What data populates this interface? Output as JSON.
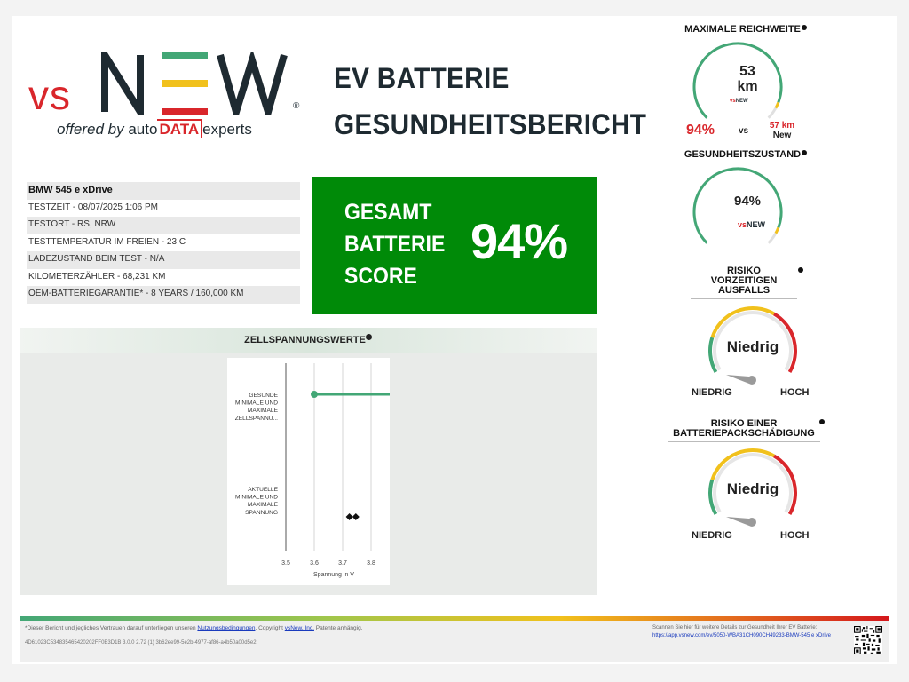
{
  "logo": {
    "vs": "vs",
    "new": "NEW",
    "registered": "®",
    "offered_by": "offered by",
    "auto": "auto",
    "data": "DATA",
    "experts": "experts"
  },
  "title": {
    "line1": "EV BATTERIE",
    "line2": "GESUNDHEITSBERICHT"
  },
  "vehicle": {
    "model": "BMW 545 e xDrive",
    "rows": [
      "TESTZEIT - 08/07/2025 1:06 PM",
      "TESTORT - RS, NRW",
      "TESTTEMPERATUR IM FREIEN - 23 C",
      "LADEZUSTAND BEIM TEST - N/A",
      "KILOMETERZÄHLER - 68,231 KM",
      "OEM-BATTERIEGARANTIE* - 8 YEARS / 160,000 KM"
    ]
  },
  "score": {
    "line1": "GESAMT",
    "line2": "BATTERIE",
    "line3": "SCORE",
    "value": "94%"
  },
  "cell_voltage": {
    "title": "ZELLSPANNUNGSWERTE"
  },
  "chart_data": {
    "type": "scatter",
    "categories": [
      [
        "GESUNDE",
        "MINIMALE UND",
        "MAXIMALE",
        "ZELLSPANNU..."
      ],
      [
        "AKTUELLE",
        "MINIMALE UND",
        "MAXIMALE",
        "SPANNUNG"
      ]
    ],
    "healthy_range": [
      3.6,
      4.2
    ],
    "actual_range": [
      3.73,
      3.74
    ],
    "xlabel": "Spannung in V",
    "xticks": [
      "3.5",
      "3.6",
      "3.7",
      "3.8"
    ],
    "xlim": [
      3.5,
      3.85
    ],
    "grid": true
  },
  "range": {
    "title": "MAXIMALE REICHWEITE",
    "value": "53",
    "unit": "km",
    "percent": "94%",
    "vs": "vs",
    "new_value": "57 km",
    "new_label": "New",
    "fill_fraction": 0.94
  },
  "health": {
    "title": "GESUNDHEITSZUSTAND",
    "value": "94%",
    "fill_fraction": 0.94
  },
  "risk_failure": {
    "title_lines": [
      "RISIKO",
      "VORZEITIGEN",
      "AUSFALLS"
    ],
    "value": "Niedrig",
    "low_label": "NIEDRIG",
    "high_label": "HOCH"
  },
  "risk_damage": {
    "title_lines": [
      "RISIKO EINER",
      "BATTERIEPACKSCHÄDIGUNG"
    ],
    "value": "Niedrig",
    "low_label": "NIEDRIG",
    "high_label": "HOCH"
  },
  "footer": {
    "disclaimer_pre": "*Dieser Bericht und jegliches Vertrauen darauf unterliegen unseren ",
    "terms_link": "Nutzungsbedingungen",
    "disclaimer_mid": ". Copyright ",
    "company_link": "vsNew, Inc.",
    "disclaimer_post": " Patente anhängig.",
    "report_id": "4D61023C534835465420202FF0B3D1B 3.0.0 2.72 (1) 3b62ee99-5e2b-4977-af86-a4b50a00d5e2",
    "scan_text": "Scannen Sie hier für weitere Details zur Gesundheit Ihrer EV Batterie:",
    "scan_link": "https://app.vsnew.com/ev/5050-WBA31CH090CH49233-BMW-545 e xDrive"
  },
  "colors": {
    "green": "#008a08",
    "red": "#d9262b",
    "yellow": "#f1c11c",
    "teal": "#43a776",
    "dark": "#1e2a31"
  }
}
